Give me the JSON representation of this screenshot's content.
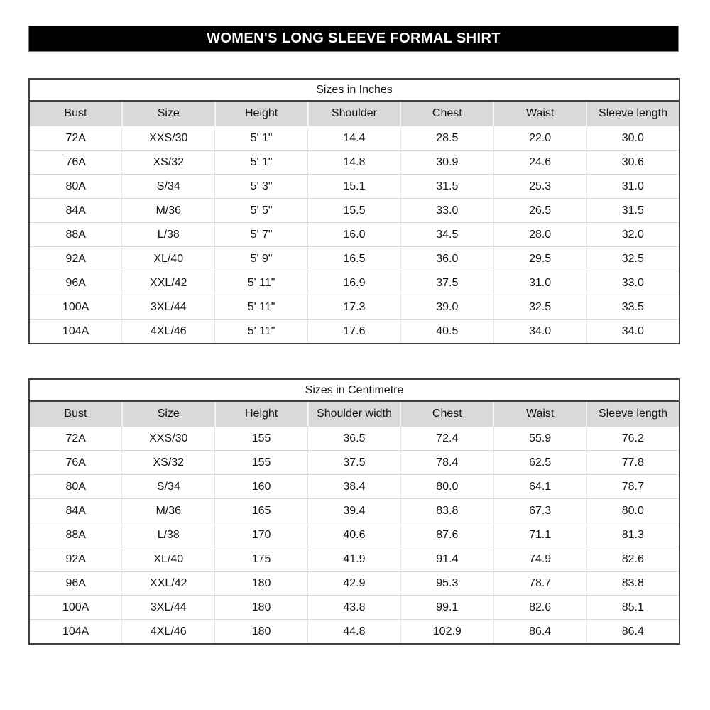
{
  "page_title": "WOMEN'S LONG SLEEVE FORMAL SHIRT",
  "colors": {
    "banner_bg": "#000000",
    "banner_text": "#ffffff",
    "header_row_bg": "#d9d9d9",
    "table_border": "#3f3f3f",
    "grid_line": "#d9d9d9"
  },
  "tables": [
    {
      "title": "Sizes in Inches",
      "headers": [
        "Bust",
        "Size",
        "Height",
        "Shoulder",
        "Chest",
        "Waist",
        "Sleeve length"
      ],
      "rows": [
        [
          "72A",
          "XXS/30",
          "5' 1\"",
          "14.4",
          "28.5",
          "22.0",
          "30.0"
        ],
        [
          "76A",
          "XS/32",
          "5' 1\"",
          "14.8",
          "30.9",
          "24.6",
          "30.6"
        ],
        [
          "80A",
          "S/34",
          "5' 3\"",
          "15.1",
          "31.5",
          "25.3",
          "31.0"
        ],
        [
          "84A",
          "M/36",
          "5' 5\"",
          "15.5",
          "33.0",
          "26.5",
          "31.5"
        ],
        [
          "88A",
          "L/38",
          "5' 7\"",
          "16.0",
          "34.5",
          "28.0",
          "32.0"
        ],
        [
          "92A",
          "XL/40",
          "5' 9\"",
          "16.5",
          "36.0",
          "29.5",
          "32.5"
        ],
        [
          "96A",
          "XXL/42",
          "5' 11\"",
          "16.9",
          "37.5",
          "31.0",
          "33.0"
        ],
        [
          "100A",
          "3XL/44",
          "5' 11\"",
          "17.3",
          "39.0",
          "32.5",
          "33.5"
        ],
        [
          "104A",
          "4XL/46",
          "5' 11\"",
          "17.6",
          "40.5",
          "34.0",
          "34.0"
        ]
      ]
    },
    {
      "title": "Sizes in Centimetre",
      "headers": [
        "Bust",
        "Size",
        "Height",
        "Shoulder width",
        "Chest",
        "Waist",
        "Sleeve length"
      ],
      "rows": [
        [
          "72A",
          "XXS/30",
          "155",
          "36.5",
          "72.4",
          "55.9",
          "76.2"
        ],
        [
          "76A",
          "XS/32",
          "155",
          "37.5",
          "78.4",
          "62.5",
          "77.8"
        ],
        [
          "80A",
          "S/34",
          "160",
          "38.4",
          "80.0",
          "64.1",
          "78.7"
        ],
        [
          "84A",
          "M/36",
          "165",
          "39.4",
          "83.8",
          "67.3",
          "80.0"
        ],
        [
          "88A",
          "L/38",
          "170",
          "40.6",
          "87.6",
          "71.1",
          "81.3"
        ],
        [
          "92A",
          "XL/40",
          "175",
          "41.9",
          "91.4",
          "74.9",
          "82.6"
        ],
        [
          "96A",
          "XXL/42",
          "180",
          "42.9",
          "95.3",
          "78.7",
          "83.8"
        ],
        [
          "100A",
          "3XL/44",
          "180",
          "43.8",
          "99.1",
          "82.6",
          "85.1"
        ],
        [
          "104A",
          "4XL/46",
          "180",
          "44.8",
          "102.9",
          "86.4",
          "86.4"
        ]
      ]
    }
  ]
}
